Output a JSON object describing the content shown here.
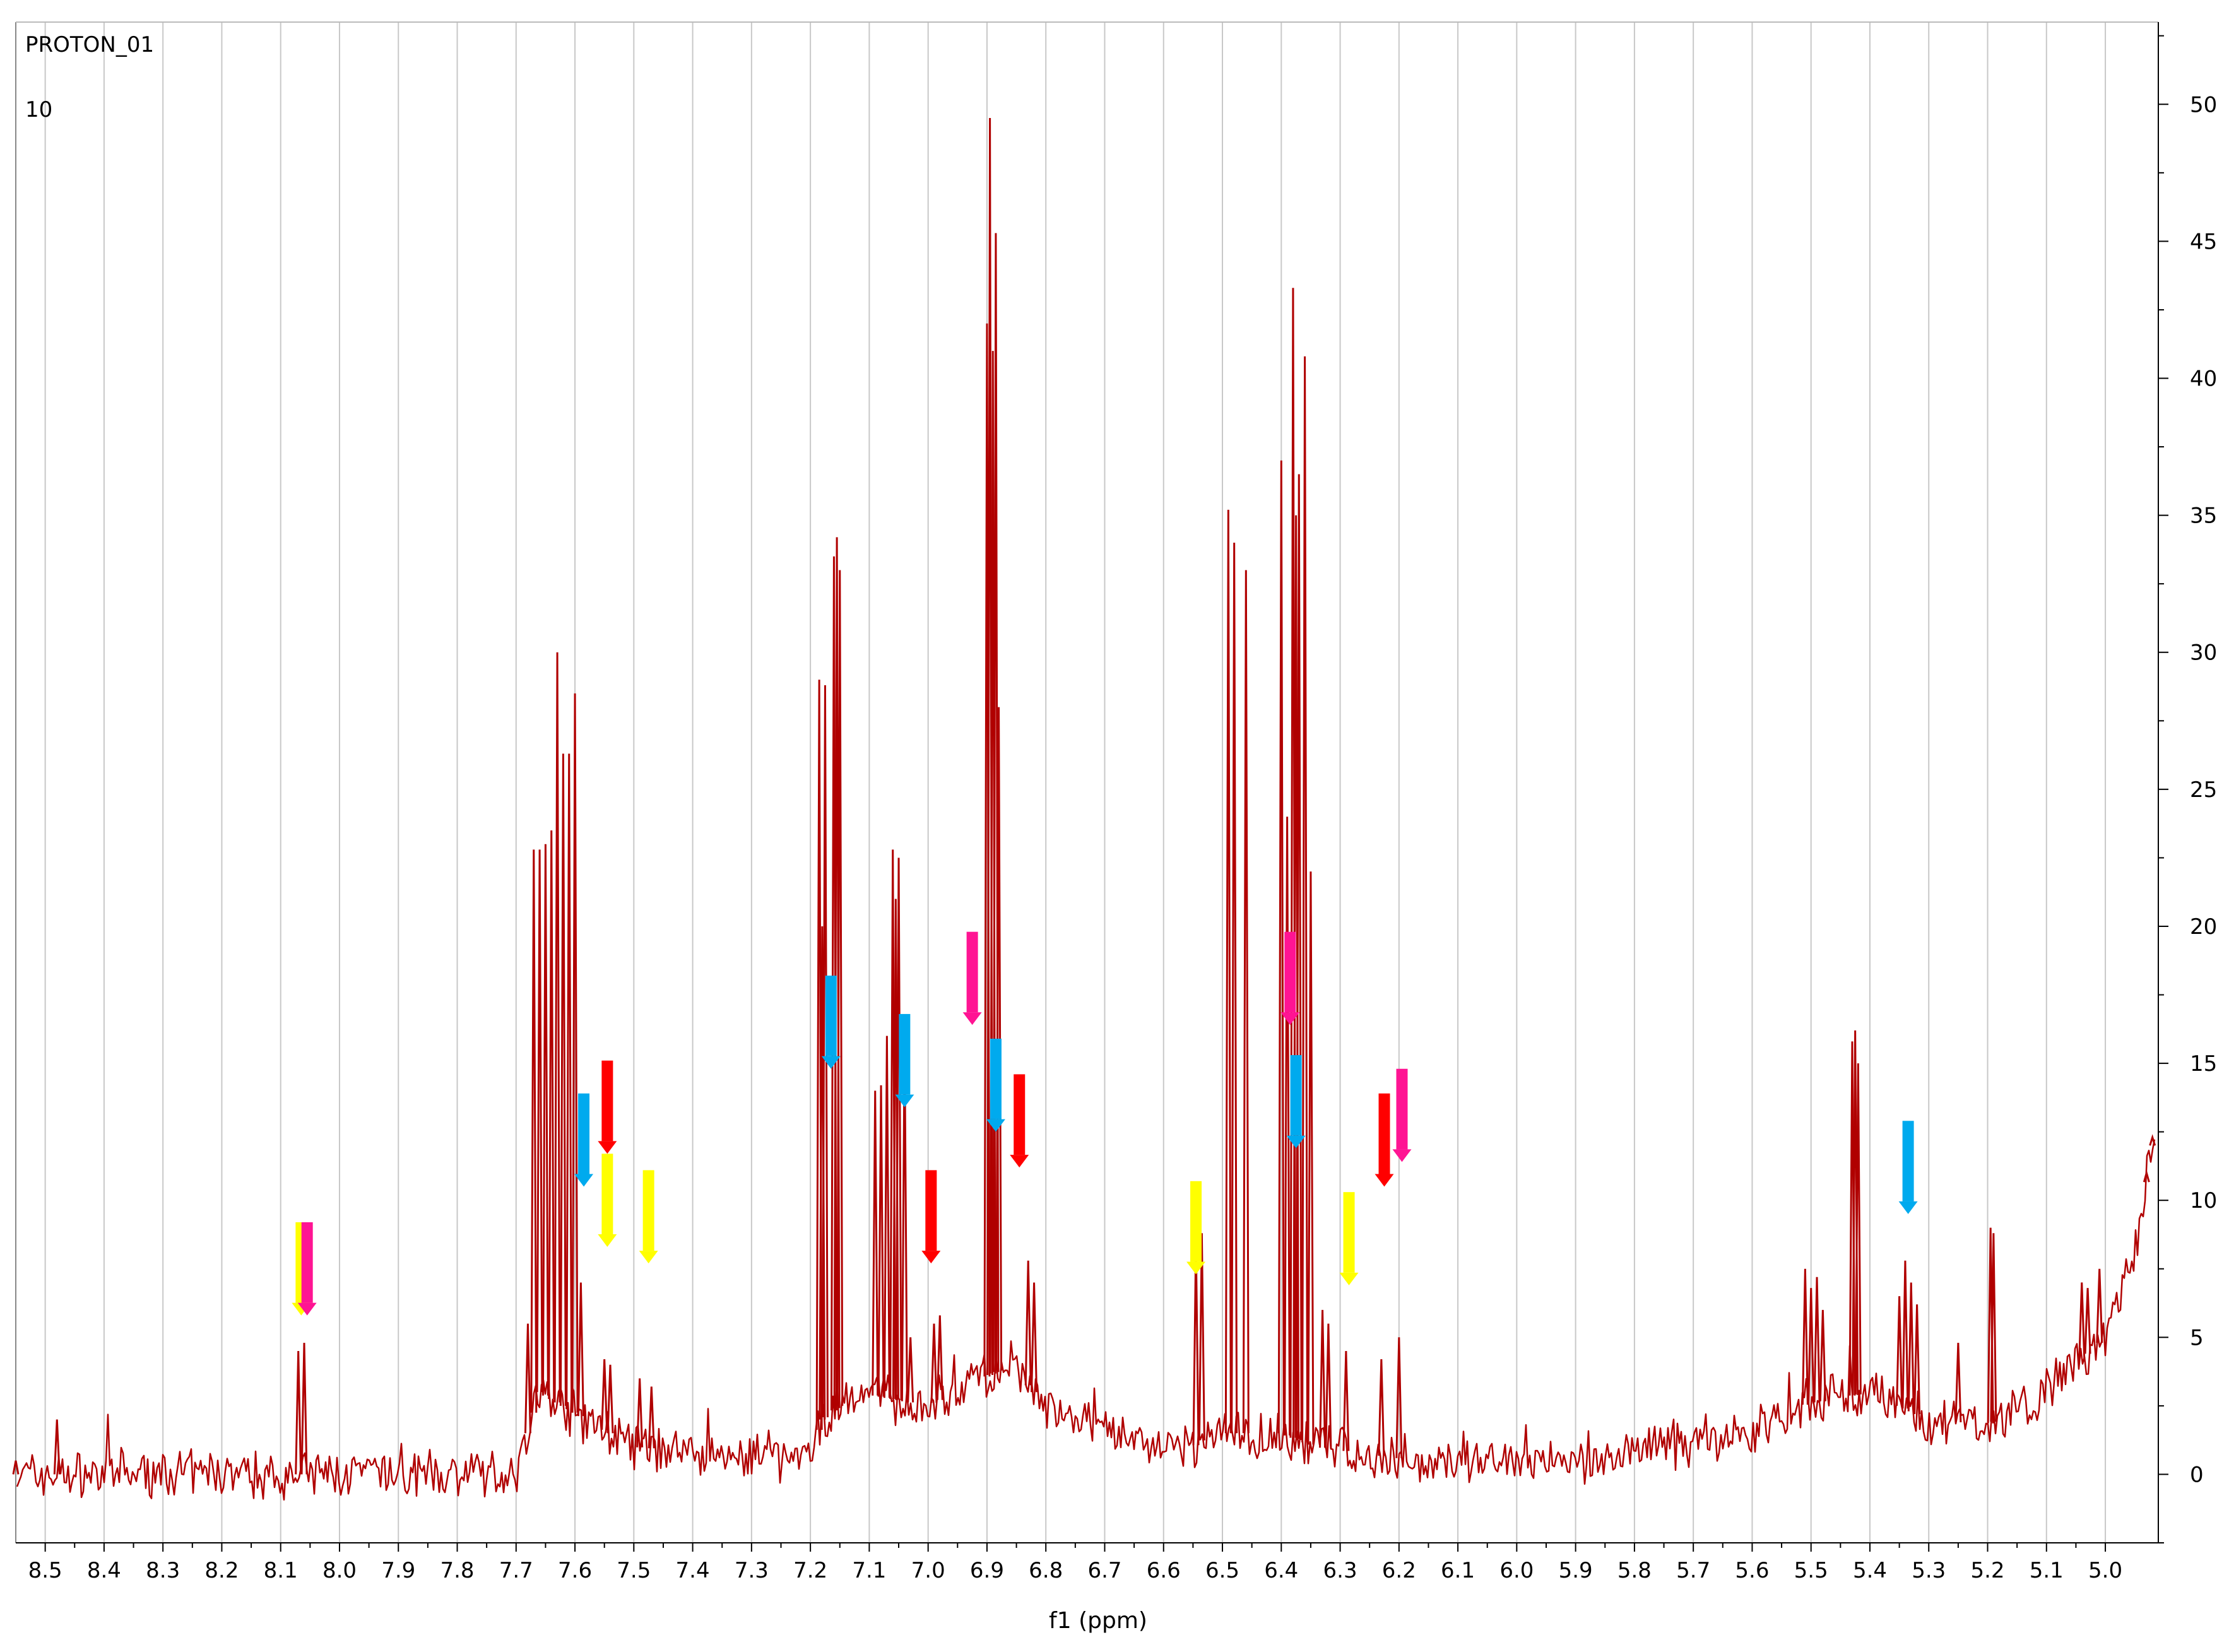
{
  "header": {
    "dataset_label": "PROTON_01",
    "experiment_number": "10"
  },
  "chart_data": {
    "type": "line",
    "xlabel": "f1 (ppm)",
    "ylabel": "",
    "xlim": [
      8.55,
      4.91
    ],
    "ylim": [
      -2.5,
      53
    ],
    "x_ticks": [
      8.5,
      8.4,
      8.3,
      8.2,
      8.1,
      8.0,
      7.9,
      7.8,
      7.7,
      7.6,
      7.5,
      7.4,
      7.3,
      7.2,
      7.1,
      7.0,
      6.9,
      6.8,
      6.7,
      6.6,
      6.5,
      6.4,
      6.3,
      6.2,
      6.1,
      6.0,
      5.9,
      5.8,
      5.7,
      5.6,
      5.5,
      5.4,
      5.3,
      5.2,
      5.1,
      5.0
    ],
    "y_ticks": [
      0,
      5,
      10,
      15,
      20,
      25,
      30,
      35,
      40,
      45,
      50
    ],
    "grid": {
      "vertical": true,
      "horizontal": false
    },
    "line_color": "#b00000",
    "baseline": [
      [
        8.55,
        0
      ],
      [
        7.7,
        0
      ],
      [
        7.66,
        3
      ],
      [
        7.5,
        1
      ],
      [
        7.2,
        0.5
      ],
      [
        7.18,
        2
      ],
      [
        7.12,
        3
      ],
      [
        7.0,
        2.5
      ],
      [
        6.86,
        4
      ],
      [
        6.78,
        2
      ],
      [
        6.56,
        0.8
      ],
      [
        6.52,
        1.5
      ],
      [
        6.4,
        1.5
      ],
      [
        6.34,
        1
      ],
      [
        6.1,
        0.3
      ],
      [
        5.9,
        0.5
      ],
      [
        5.7,
        1.2
      ],
      [
        5.6,
        1.5
      ],
      [
        5.52,
        2.5
      ],
      [
        5.4,
        3
      ],
      [
        5.3,
        2
      ],
      [
        5.2,
        1.8
      ],
      [
        5.1,
        3
      ],
      [
        5.0,
        5
      ],
      [
        4.95,
        8
      ],
      [
        4.92,
        12
      ]
    ],
    "peaks": [
      {
        "ppm": 8.55,
        "height": 0.5
      },
      {
        "ppm": 8.48,
        "height": 2
      },
      {
        "ppm": 8.07,
        "height": 4.5
      },
      {
        "ppm": 8.06,
        "height": 4.8
      },
      {
        "ppm": 7.68,
        "height": 5.5
      },
      {
        "ppm": 7.67,
        "height": 22.8
      },
      {
        "ppm": 7.66,
        "height": 22.8
      },
      {
        "ppm": 7.65,
        "height": 23
      },
      {
        "ppm": 7.64,
        "height": 23.5
      },
      {
        "ppm": 7.63,
        "height": 30
      },
      {
        "ppm": 7.62,
        "height": 26.3
      },
      {
        "ppm": 7.61,
        "height": 26.3
      },
      {
        "ppm": 7.6,
        "height": 28.5
      },
      {
        "ppm": 7.59,
        "height": 7
      },
      {
        "ppm": 7.55,
        "height": 4.2
      },
      {
        "ppm": 7.54,
        "height": 4
      },
      {
        "ppm": 7.49,
        "height": 3.5
      },
      {
        "ppm": 7.47,
        "height": 3.2
      },
      {
        "ppm": 7.185,
        "height": 29
      },
      {
        "ppm": 7.18,
        "height": 20
      },
      {
        "ppm": 7.175,
        "height": 28.8
      },
      {
        "ppm": 7.16,
        "height": 33.5
      },
      {
        "ppm": 7.155,
        "height": 34.2
      },
      {
        "ppm": 7.15,
        "height": 33
      },
      {
        "ppm": 7.09,
        "height": 14
      },
      {
        "ppm": 7.08,
        "height": 14.2
      },
      {
        "ppm": 7.07,
        "height": 16
      },
      {
        "ppm": 7.06,
        "height": 22.8
      },
      {
        "ppm": 7.055,
        "height": 21
      },
      {
        "ppm": 7.05,
        "height": 22.5
      },
      {
        "ppm": 7.04,
        "height": 16
      },
      {
        "ppm": 7.03,
        "height": 5
      },
      {
        "ppm": 6.99,
        "height": 5.5
      },
      {
        "ppm": 6.98,
        "height": 5.8
      },
      {
        "ppm": 6.9,
        "height": 42
      },
      {
        "ppm": 6.895,
        "height": 49.5
      },
      {
        "ppm": 6.89,
        "height": 41
      },
      {
        "ppm": 6.885,
        "height": 45.3
      },
      {
        "ppm": 6.88,
        "height": 28
      },
      {
        "ppm": 6.83,
        "height": 7.8
      },
      {
        "ppm": 6.82,
        "height": 7
      },
      {
        "ppm": 6.545,
        "height": 8.5
      },
      {
        "ppm": 6.535,
        "height": 8.8
      },
      {
        "ppm": 6.49,
        "height": 35.2
      },
      {
        "ppm": 6.48,
        "height": 34
      },
      {
        "ppm": 6.46,
        "height": 33
      },
      {
        "ppm": 6.4,
        "height": 37
      },
      {
        "ppm": 6.39,
        "height": 24
      },
      {
        "ppm": 6.38,
        "height": 43.3
      },
      {
        "ppm": 6.375,
        "height": 35
      },
      {
        "ppm": 6.37,
        "height": 36.5
      },
      {
        "ppm": 6.36,
        "height": 40.8
      },
      {
        "ppm": 6.35,
        "height": 22
      },
      {
        "ppm": 6.33,
        "height": 6
      },
      {
        "ppm": 6.32,
        "height": 5.5
      },
      {
        "ppm": 6.29,
        "height": 4.5
      },
      {
        "ppm": 6.23,
        "height": 4.2
      },
      {
        "ppm": 6.2,
        "height": 5
      },
      {
        "ppm": 5.51,
        "height": 7.5
      },
      {
        "ppm": 5.5,
        "height": 6.8
      },
      {
        "ppm": 5.49,
        "height": 7.2
      },
      {
        "ppm": 5.48,
        "height": 6
      },
      {
        "ppm": 5.43,
        "height": 15.8
      },
      {
        "ppm": 5.425,
        "height": 16.2
      },
      {
        "ppm": 5.42,
        "height": 15
      },
      {
        "ppm": 5.35,
        "height": 6.5
      },
      {
        "ppm": 5.34,
        "height": 7.8
      },
      {
        "ppm": 5.33,
        "height": 7
      },
      {
        "ppm": 5.32,
        "height": 6.2
      },
      {
        "ppm": 5.25,
        "height": 4.8
      },
      {
        "ppm": 5.195,
        "height": 9
      },
      {
        "ppm": 5.19,
        "height": 8.8
      },
      {
        "ppm": 5.04,
        "height": 7
      },
      {
        "ppm": 5.03,
        "height": 6.8
      },
      {
        "ppm": 5.01,
        "height": 7.5
      },
      {
        "ppm": 4.93,
        "height": 11
      },
      {
        "ppm": 4.92,
        "height": 12.3
      }
    ],
    "annotations": [
      {
        "color": "#ffff00",
        "ppm": 8.065,
        "from": 9.2,
        "to": 5.8
      },
      {
        "color": "#ff1493",
        "ppm": 8.055,
        "from": 9.2,
        "to": 5.8
      },
      {
        "color": "#00aaee",
        "ppm": 7.585,
        "from": 13.9,
        "to": 10.5
      },
      {
        "color": "#ff0000",
        "ppm": 7.545,
        "from": 15.1,
        "to": 11.7
      },
      {
        "color": "#ffff00",
        "ppm": 7.545,
        "from": 11.7,
        "to": 8.3
      },
      {
        "color": "#ffff00",
        "ppm": 7.475,
        "from": 11.1,
        "to": 7.7
      },
      {
        "color": "#00aaee",
        "ppm": 7.165,
        "from": 18.2,
        "to": 14.8
      },
      {
        "color": "#00aaee",
        "ppm": 7.04,
        "from": 16.8,
        "to": 13.4
      },
      {
        "color": "#ff0000",
        "ppm": 6.995,
        "from": 11.1,
        "to": 7.7
      },
      {
        "color": "#ff1493",
        "ppm": 6.925,
        "from": 19.8,
        "to": 16.4
      },
      {
        "color": "#00aaee",
        "ppm": 6.885,
        "from": 15.9,
        "to": 12.5
      },
      {
        "color": "#ff0000",
        "ppm": 6.845,
        "from": 14.6,
        "to": 11.2
      },
      {
        "color": "#ffff00",
        "ppm": 6.545,
        "from": 10.7,
        "to": 7.3
      },
      {
        "color": "#ff1493",
        "ppm": 6.385,
        "from": 19.8,
        "to": 16.4
      },
      {
        "color": "#00aaee",
        "ppm": 6.375,
        "from": 15.3,
        "to": 11.9
      },
      {
        "color": "#ffff00",
        "ppm": 6.285,
        "from": 10.3,
        "to": 6.9
      },
      {
        "color": "#ff0000",
        "ppm": 6.225,
        "from": 13.9,
        "to": 10.5
      },
      {
        "color": "#ff1493",
        "ppm": 6.195,
        "from": 14.8,
        "to": 11.4
      },
      {
        "color": "#00aaee",
        "ppm": 5.335,
        "from": 12.9,
        "to": 9.5
      }
    ]
  }
}
